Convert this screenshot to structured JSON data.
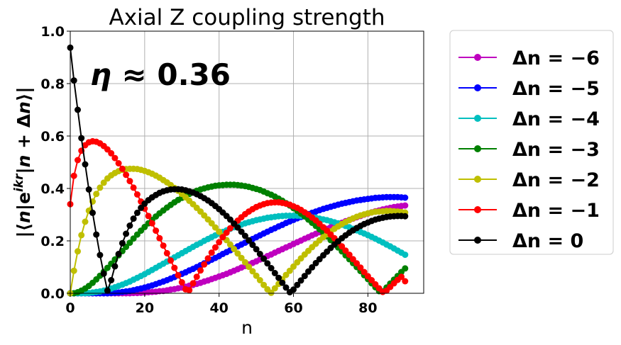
{
  "chart_data": {
    "type": "line",
    "title": "Axial Z coupling strength",
    "xlabel": "n",
    "ylabel": "|⟨n|e^{ikr}|n+Δn⟩|",
    "annotation": "η≈0.36",
    "xlim": [
      0,
      95
    ],
    "ylim": [
      0,
      1.0
    ],
    "xticks": [
      "0",
      "20",
      "40",
      "60",
      "80"
    ],
    "yticks": [
      "0.0",
      "0.2",
      "0.4",
      "0.6",
      "0.8",
      "1.0"
    ],
    "grid": true,
    "legend_position": "outside-right",
    "x": [
      0,
      1,
      2,
      3,
      4,
      5,
      6,
      7,
      8,
      9,
      10,
      11,
      12,
      13,
      14,
      15,
      16,
      17,
      18,
      19,
      20,
      21,
      22,
      23,
      24,
      25,
      26,
      27,
      28,
      29,
      30,
      31,
      32,
      33,
      34,
      35,
      36,
      37,
      38,
      39,
      40,
      41,
      42,
      43,
      44,
      45,
      46,
      47,
      48,
      49,
      50,
      51,
      52,
      53,
      54,
      55,
      56,
      57,
      58,
      59,
      60,
      61,
      62,
      63,
      64,
      65,
      66,
      67,
      68,
      69,
      70,
      71,
      72,
      73,
      74,
      75,
      76,
      77,
      78,
      79,
      80,
      81,
      82,
      83,
      84,
      85,
      86,
      87,
      88,
      89,
      90
    ],
    "series": [
      {
        "name": "Δn = −6",
        "color": "#bf00bf",
        "values": [
          0,
          0,
          0,
          0,
          0,
          0,
          0,
          0,
          0,
          0,
          0,
          0,
          0,
          0,
          0,
          0,
          0,
          0.001,
          0.001,
          0.002,
          0.003,
          0.004,
          0.005,
          0.006,
          0.008,
          0.009,
          0.011,
          0.014,
          0.016,
          0.019,
          0.022,
          0.025,
          0.029,
          0.032,
          0.036,
          0.04,
          0.045,
          0.049,
          0.054,
          0.059,
          0.064,
          0.069,
          0.074,
          0.08,
          0.086,
          0.092,
          0.098,
          0.104,
          0.11,
          0.116,
          0.122,
          0.129,
          0.135,
          0.142,
          0.148,
          0.155,
          0.162,
          0.168,
          0.175,
          0.181,
          0.188,
          0.195,
          0.201,
          0.208,
          0.214,
          0.221,
          0.227,
          0.233,
          0.24,
          0.246,
          0.252,
          0.258,
          0.263,
          0.269,
          0.275,
          0.28,
          0.285,
          0.29,
          0.295,
          0.3,
          0.304,
          0.309,
          0.313,
          0.316,
          0.32,
          0.323,
          0.326,
          0.329,
          0.331,
          0.333,
          0.335
        ]
      },
      {
        "name": "Δn = −5",
        "color": "#0000ff",
        "values": [
          0,
          0,
          0,
          0,
          0,
          0,
          0,
          0,
          0,
          0,
          0,
          0.001,
          0.002,
          0.003,
          0.005,
          0.007,
          0.009,
          0.012,
          0.015,
          0.018,
          0.022,
          0.026,
          0.03,
          0.035,
          0.04,
          0.045,
          0.05,
          0.056,
          0.062,
          0.068,
          0.074,
          0.08,
          0.087,
          0.093,
          0.1,
          0.107,
          0.114,
          0.121,
          0.128,
          0.135,
          0.142,
          0.15,
          0.157,
          0.164,
          0.171,
          0.179,
          0.186,
          0.193,
          0.2,
          0.207,
          0.214,
          0.221,
          0.228,
          0.235,
          0.242,
          0.248,
          0.255,
          0.261,
          0.268,
          0.274,
          0.28,
          0.286,
          0.291,
          0.297,
          0.302,
          0.307,
          0.312,
          0.317,
          0.322,
          0.326,
          0.33,
          0.334,
          0.338,
          0.342,
          0.345,
          0.348,
          0.351,
          0.354,
          0.356,
          0.358,
          0.36,
          0.362,
          0.364,
          0.365,
          0.366,
          0.367,
          0.367,
          0.367,
          0.367,
          0.366,
          0.365
        ]
      },
      {
        "name": "Δn = −4",
        "color": "#00bfbf",
        "values": [
          0,
          0,
          0,
          0,
          0,
          0.001,
          0.003,
          0.005,
          0.007,
          0.01,
          0.014,
          0.018,
          0.023,
          0.028,
          0.033,
          0.039,
          0.045,
          0.052,
          0.059,
          0.066,
          0.073,
          0.081,
          0.089,
          0.097,
          0.105,
          0.113,
          0.121,
          0.129,
          0.137,
          0.145,
          0.153,
          0.161,
          0.169,
          0.177,
          0.185,
          0.192,
          0.2,
          0.207,
          0.214,
          0.221,
          0.228,
          0.234,
          0.24,
          0.246,
          0.252,
          0.257,
          0.262,
          0.267,
          0.271,
          0.275,
          0.279,
          0.282,
          0.285,
          0.288,
          0.29,
          0.292,
          0.294,
          0.295,
          0.296,
          0.296,
          0.296,
          0.296,
          0.295,
          0.294,
          0.292,
          0.29,
          0.288,
          0.285,
          0.282,
          0.279,
          0.275,
          0.271,
          0.267,
          0.262,
          0.257,
          0.252,
          0.246,
          0.24,
          0.234,
          0.228,
          0.222,
          0.215,
          0.208,
          0.201,
          0.194,
          0.186,
          0.179,
          0.171,
          0.163,
          0.155,
          0.147
        ]
      },
      {
        "name": "Δn = −3",
        "color": "#008000",
        "values": [
          0,
          0,
          0.004,
          0.01,
          0.018,
          0.028,
          0.04,
          0.053,
          0.067,
          0.082,
          0.097,
          0.113,
          0.129,
          0.145,
          0.161,
          0.177,
          0.193,
          0.209,
          0.224,
          0.239,
          0.253,
          0.267,
          0.28,
          0.293,
          0.305,
          0.316,
          0.327,
          0.337,
          0.347,
          0.356,
          0.364,
          0.372,
          0.379,
          0.385,
          0.391,
          0.396,
          0.4,
          0.404,
          0.407,
          0.41,
          0.412,
          0.413,
          0.414,
          0.414,
          0.414,
          0.413,
          0.411,
          0.409,
          0.406,
          0.402,
          0.398,
          0.394,
          0.388,
          0.382,
          0.376,
          0.369,
          0.361,
          0.353,
          0.344,
          0.335,
          0.325,
          0.315,
          0.304,
          0.293,
          0.281,
          0.269,
          0.257,
          0.244,
          0.231,
          0.217,
          0.203,
          0.189,
          0.175,
          0.16,
          0.145,
          0.13,
          0.115,
          0.1,
          0.085,
          0.069,
          0.054,
          0.038,
          0.023,
          0.008,
          0.007,
          0.022,
          0.037,
          0.052,
          0.066,
          0.081,
          0.095
        ]
      },
      {
        "name": "Δn = −2",
        "color": "#bfbf00",
        "values": [
          0,
          0.086,
          0.16,
          0.222,
          0.273,
          0.315,
          0.35,
          0.379,
          0.403,
          0.422,
          0.438,
          0.45,
          0.459,
          0.466,
          0.471,
          0.474,
          0.475,
          0.475,
          0.474,
          0.471,
          0.467,
          0.462,
          0.456,
          0.449,
          0.441,
          0.432,
          0.423,
          0.413,
          0.402,
          0.391,
          0.379,
          0.366,
          0.353,
          0.34,
          0.326,
          0.312,
          0.297,
          0.282,
          0.267,
          0.251,
          0.235,
          0.219,
          0.203,
          0.186,
          0.169,
          0.152,
          0.135,
          0.118,
          0.101,
          0.084,
          0.067,
          0.05,
          0.032,
          0.015,
          0.002,
          0.019,
          0.036,
          0.053,
          0.07,
          0.086,
          0.102,
          0.118,
          0.133,
          0.148,
          0.162,
          0.176,
          0.189,
          0.202,
          0.214,
          0.225,
          0.236,
          0.246,
          0.255,
          0.264,
          0.272,
          0.279,
          0.286,
          0.292,
          0.297,
          0.301,
          0.305,
          0.308,
          0.311,
          0.312,
          0.313,
          0.314,
          0.314,
          0.313,
          0.312,
          0.31,
          0.308
        ]
      },
      {
        "name": "Δn = −1",
        "color": "#ff0000",
        "values": [
          0.34,
          0.448,
          0.508,
          0.544,
          0.565,
          0.576,
          0.58,
          0.578,
          0.572,
          0.562,
          0.549,
          0.534,
          0.516,
          0.496,
          0.475,
          0.452,
          0.428,
          0.403,
          0.377,
          0.35,
          0.323,
          0.295,
          0.267,
          0.239,
          0.21,
          0.182,
          0.153,
          0.125,
          0.097,
          0.069,
          0.042,
          0.015,
          0.012,
          0.038,
          0.063,
          0.087,
          0.11,
          0.133,
          0.155,
          0.175,
          0.195,
          0.214,
          0.231,
          0.248,
          0.263,
          0.277,
          0.29,
          0.302,
          0.312,
          0.321,
          0.329,
          0.335,
          0.34,
          0.344,
          0.346,
          0.347,
          0.347,
          0.345,
          0.342,
          0.338,
          0.332,
          0.326,
          0.318,
          0.309,
          0.3,
          0.289,
          0.278,
          0.265,
          0.252,
          0.239,
          0.224,
          0.21,
          0.194,
          0.179,
          0.163,
          0.147,
          0.13,
          0.114,
          0.098,
          0.081,
          0.065,
          0.05,
          0.034,
          0.019,
          0.005,
          0.01,
          0.024,
          0.038,
          0.051,
          0.063,
          0.046
        ]
      },
      {
        "name": "Δn = 0",
        "color": "#000000",
        "values": [
          0.937,
          0.812,
          0.7,
          0.592,
          0.492,
          0.396,
          0.307,
          0.224,
          0.146,
          0.075,
          0.01,
          0.05,
          0.103,
          0.15,
          0.191,
          0.227,
          0.258,
          0.285,
          0.307,
          0.326,
          0.342,
          0.355,
          0.366,
          0.375,
          0.383,
          0.389,
          0.393,
          0.396,
          0.397,
          0.397,
          0.396,
          0.393,
          0.389,
          0.384,
          0.378,
          0.371,
          0.363,
          0.354,
          0.344,
          0.333,
          0.321,
          0.308,
          0.295,
          0.281,
          0.266,
          0.251,
          0.235,
          0.219,
          0.202,
          0.185,
          0.168,
          0.15,
          0.132,
          0.114,
          0.096,
          0.077,
          0.059,
          0.04,
          0.022,
          0.004,
          0.014,
          0.032,
          0.049,
          0.066,
          0.083,
          0.099,
          0.115,
          0.13,
          0.145,
          0.159,
          0.173,
          0.186,
          0.198,
          0.21,
          0.221,
          0.231,
          0.24,
          0.249,
          0.257,
          0.264,
          0.27,
          0.276,
          0.281,
          0.285,
          0.288,
          0.291,
          0.293,
          0.294,
          0.295,
          0.295,
          0.294
        ]
      }
    ]
  }
}
